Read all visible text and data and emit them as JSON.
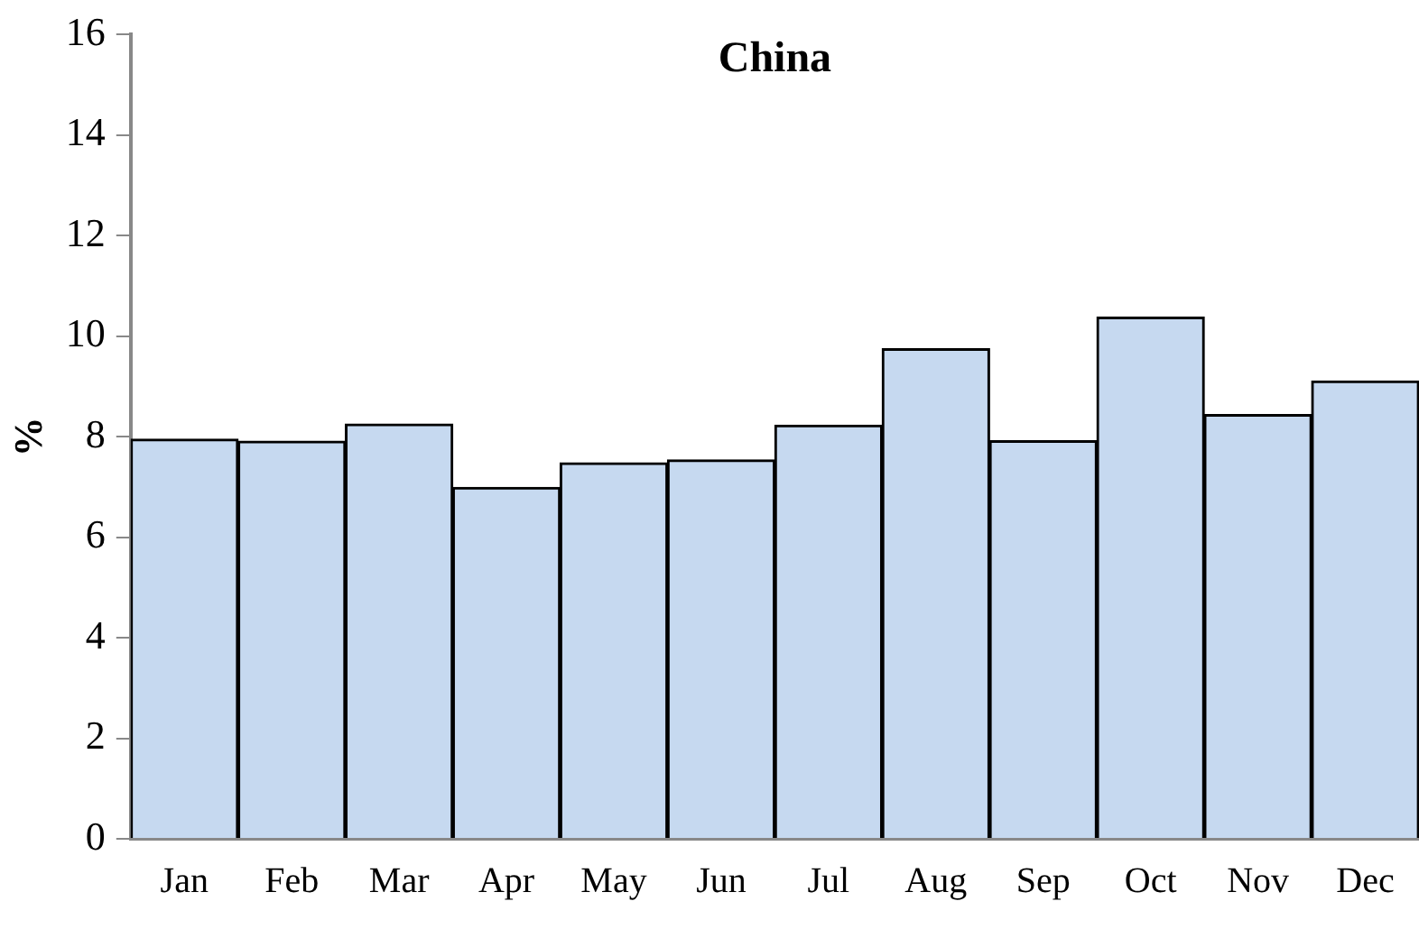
{
  "chart_data": {
    "type": "bar",
    "title": "China",
    "ylabel": "%",
    "categories": [
      "Jan",
      "Feb",
      "Mar",
      "Apr",
      "May",
      "Jun",
      "Jul",
      "Aug",
      "Sep",
      "Oct",
      "Nov",
      "Dec"
    ],
    "values": [
      7.95,
      7.91,
      8.25,
      6.99,
      7.48,
      7.54,
      8.23,
      9.75,
      7.92,
      10.38,
      8.44,
      9.11
    ],
    "color": "#c6d9f0",
    "ylim": [
      0,
      16
    ],
    "yticks": [
      0,
      2,
      4,
      6,
      8,
      10,
      12,
      14,
      16
    ],
    "grid": false,
    "legend": false
  }
}
